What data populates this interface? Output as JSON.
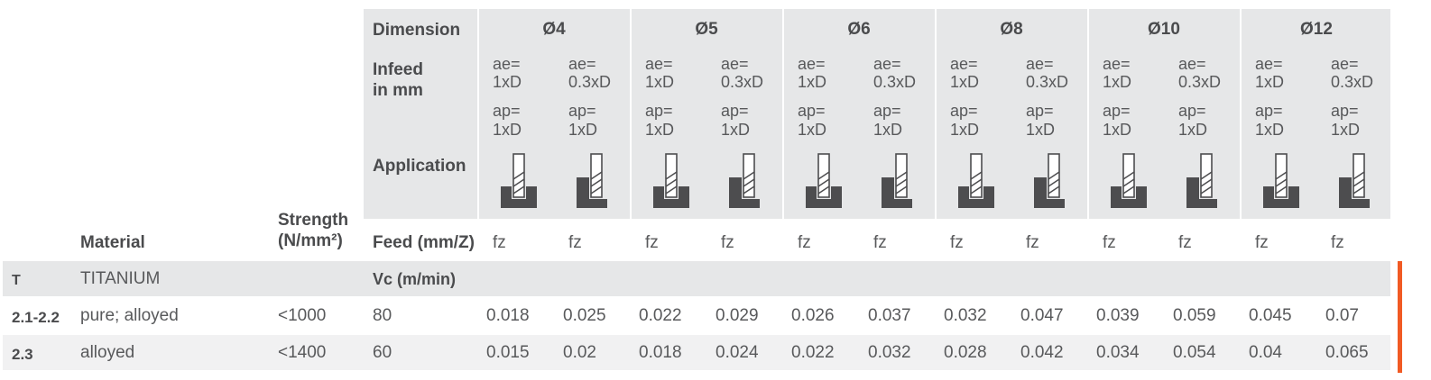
{
  "header": {
    "dimension_label": "Dimension",
    "infeed_label_line1": "Infeed",
    "infeed_label_line2": "in mm",
    "application_label": "Application",
    "feed_label": "Feed (mm/Z)",
    "material_label": "Material",
    "strength_label_line1": "Strength",
    "strength_label_line2": "(N/mm²)",
    "dimensions": [
      "Ø4",
      "Ø5",
      "Ø6",
      "Ø8",
      "Ø10",
      "Ø12"
    ],
    "infeed": {
      "full": {
        "ae1": "ae=",
        "ae2": "1xD",
        "ap1": "ap=",
        "ap2": "1xD"
      },
      "partial": {
        "ae1": "ae=",
        "ae2": "0.3xD",
        "ap1": "ap=",
        "ap2": "1xD"
      }
    },
    "feed_symbol": "fz",
    "application_icons": [
      "slot-milling-icon",
      "side-milling-icon"
    ]
  },
  "section": {
    "code": "T",
    "material": "TITANIUM",
    "vc_label": "Vc (m/min)"
  },
  "rows": [
    {
      "code": "2.1-2.2",
      "material": "pure; alloyed",
      "strength": "<1000",
      "vc": "80",
      "fz": [
        "0.018",
        "0.025",
        "0.022",
        "0.029",
        "0.026",
        "0.037",
        "0.032",
        "0.047",
        "0.039",
        "0.059",
        "0.045",
        "0.07"
      ]
    },
    {
      "code": "2.3",
      "material": "alloyed",
      "strength": "<1400",
      "vc": "60",
      "fz": [
        "0.015",
        "0.02",
        "0.018",
        "0.024",
        "0.022",
        "0.032",
        "0.028",
        "0.042",
        "0.034",
        "0.054",
        "0.04",
        "0.065"
      ]
    }
  ],
  "colors": {
    "header_bg": "#e6e7e8",
    "section_bg": "#e6e7e8",
    "alt_row_bg": "#f1f1f2",
    "accent": "#f15a24",
    "icon": "#4d4d4f"
  }
}
